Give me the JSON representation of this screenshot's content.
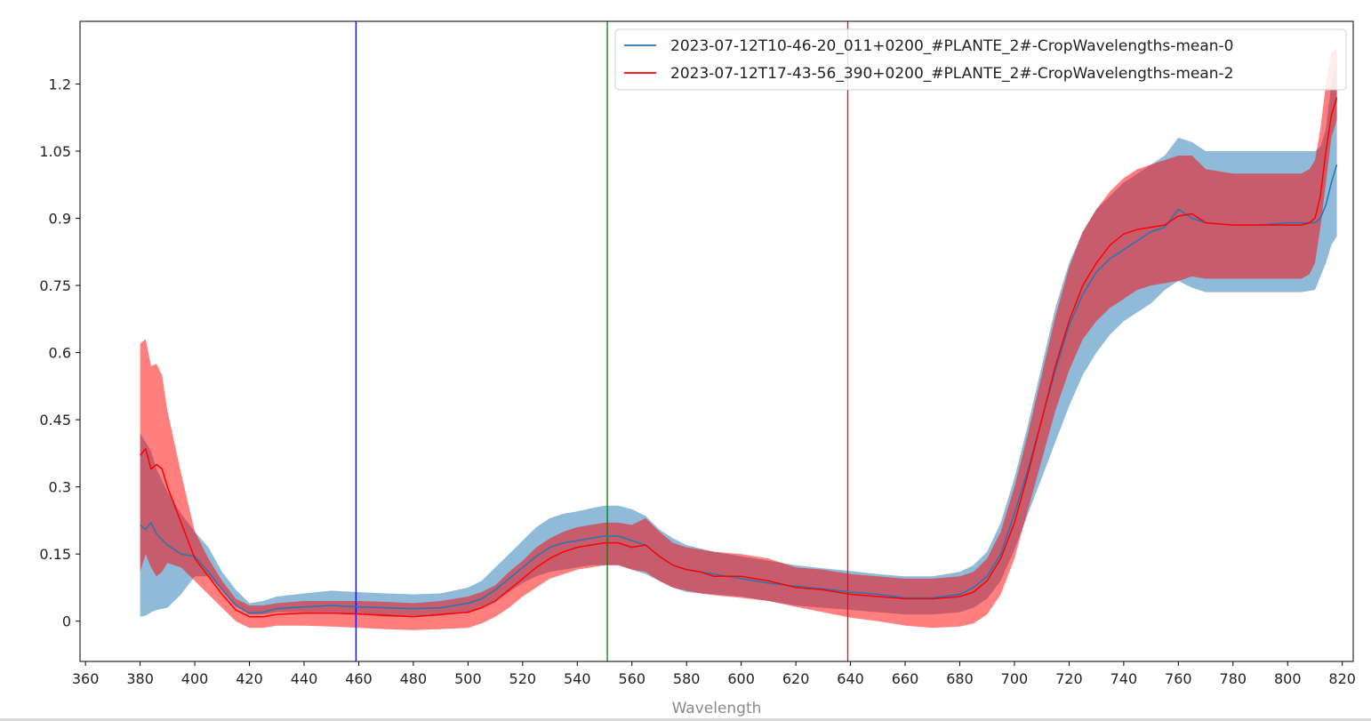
{
  "chart_data": {
    "type": "line",
    "title": "",
    "xlabel": "Wavelength",
    "ylabel": "",
    "xlim": [
      358,
      824
    ],
    "ylim": [
      -0.09,
      1.34
    ],
    "xticks": [
      360,
      380,
      400,
      420,
      440,
      460,
      480,
      500,
      520,
      540,
      560,
      580,
      600,
      620,
      640,
      660,
      680,
      700,
      720,
      740,
      760,
      780,
      800,
      820
    ],
    "yticks": [
      0,
      0.15,
      0.3,
      0.45,
      0.6,
      0.75,
      0.9,
      1.05,
      1.2
    ],
    "ytick_labels": [
      "0",
      "0.15",
      "0.3",
      "0.45",
      "0.6",
      "0.75",
      "0.9",
      "1.05",
      "1.2"
    ],
    "grid": false,
    "legend_position": "top-right",
    "vlines": [
      {
        "x": 459,
        "color": "#0000ff"
      },
      {
        "x": 551,
        "color": "#008000"
      },
      {
        "x": 639,
        "color": "#ff0000"
      }
    ],
    "series": [
      {
        "name": "2023-07-12T10-46-20_011+0200_#PLANTE_2#-CropWavelengths-mean-0",
        "color": "#1f77b4",
        "band_color": "#1f77b4",
        "band_opacity": 0.5,
        "x": [
          380,
          382,
          384,
          386,
          390,
          395,
          400,
          405,
          410,
          415,
          420,
          425,
          430,
          440,
          450,
          460,
          470,
          480,
          490,
          500,
          505,
          510,
          515,
          520,
          525,
          530,
          535,
          540,
          545,
          550,
          555,
          560,
          565,
          570,
          575,
          580,
          590,
          600,
          610,
          620,
          630,
          640,
          650,
          660,
          670,
          680,
          685,
          690,
          695,
          700,
          705,
          710,
          715,
          720,
          725,
          730,
          735,
          740,
          745,
          750,
          755,
          760,
          765,
          770,
          780,
          790,
          800,
          805,
          810,
          812,
          814,
          816,
          818
        ],
        "mean": [
          0.215,
          0.205,
          0.22,
          0.195,
          0.17,
          0.15,
          0.145,
          0.11,
          0.07,
          0.035,
          0.018,
          0.02,
          0.028,
          0.032,
          0.035,
          0.032,
          0.03,
          0.028,
          0.03,
          0.04,
          0.05,
          0.07,
          0.095,
          0.12,
          0.145,
          0.165,
          0.175,
          0.18,
          0.185,
          0.19,
          0.19,
          0.18,
          0.17,
          0.145,
          0.125,
          0.115,
          0.105,
          0.095,
          0.085,
          0.078,
          0.072,
          0.065,
          0.06,
          0.052,
          0.052,
          0.06,
          0.075,
          0.1,
          0.15,
          0.24,
          0.34,
          0.45,
          0.56,
          0.66,
          0.73,
          0.78,
          0.81,
          0.83,
          0.85,
          0.87,
          0.88,
          0.92,
          0.9,
          0.89,
          0.885,
          0.885,
          0.89,
          0.89,
          0.89,
          0.9,
          0.93,
          0.98,
          1.02
        ],
        "lower": [
          0.01,
          0.012,
          0.02,
          0.025,
          0.03,
          0.06,
          0.1,
          0.1,
          0.07,
          0.035,
          0.015,
          0.015,
          0.02,
          0.02,
          0.02,
          0.015,
          0.01,
          0.01,
          0.012,
          0.02,
          0.03,
          0.045,
          0.065,
          0.085,
          0.1,
          0.11,
          0.115,
          0.12,
          0.125,
          0.125,
          0.125,
          0.115,
          0.105,
          0.09,
          0.075,
          0.065,
          0.06,
          0.055,
          0.045,
          0.035,
          0.03,
          0.025,
          0.02,
          0.015,
          0.015,
          0.02,
          0.03,
          0.05,
          0.09,
          0.16,
          0.24,
          0.32,
          0.4,
          0.48,
          0.55,
          0.6,
          0.64,
          0.67,
          0.69,
          0.71,
          0.74,
          0.76,
          0.745,
          0.735,
          0.735,
          0.735,
          0.735,
          0.735,
          0.74,
          0.77,
          0.8,
          0.84,
          0.86
        ],
        "upper": [
          0.42,
          0.4,
          0.38,
          0.34,
          0.29,
          0.24,
          0.2,
          0.165,
          0.11,
          0.07,
          0.04,
          0.045,
          0.055,
          0.062,
          0.068,
          0.065,
          0.062,
          0.06,
          0.062,
          0.075,
          0.09,
          0.12,
          0.15,
          0.18,
          0.21,
          0.23,
          0.24,
          0.245,
          0.252,
          0.258,
          0.258,
          0.25,
          0.235,
          0.205,
          0.185,
          0.17,
          0.155,
          0.145,
          0.135,
          0.125,
          0.118,
          0.112,
          0.105,
          0.1,
          0.1,
          0.11,
          0.125,
          0.155,
          0.22,
          0.32,
          0.44,
          0.57,
          0.7,
          0.8,
          0.87,
          0.92,
          0.95,
          0.98,
          1.0,
          1.02,
          1.04,
          1.08,
          1.07,
          1.05,
          1.05,
          1.05,
          1.05,
          1.05,
          1.05,
          1.06,
          1.1,
          1.2,
          1.25
        ]
      },
      {
        "name": "2023-07-12T17-43-56_390+0200_#PLANTE_2#-CropWavelengths-mean-2",
        "color": "#ff0000",
        "band_color": "#ff0000",
        "band_opacity": 0.5,
        "x": [
          380,
          382,
          384,
          386,
          388,
          390,
          395,
          400,
          405,
          410,
          415,
          420,
          425,
          430,
          440,
          450,
          460,
          470,
          480,
          490,
          500,
          505,
          510,
          515,
          520,
          525,
          530,
          535,
          540,
          545,
          550,
          555,
          560,
          565,
          570,
          575,
          580,
          585,
          590,
          600,
          610,
          620,
          630,
          640,
          650,
          660,
          670,
          680,
          685,
          690,
          695,
          700,
          705,
          710,
          715,
          720,
          725,
          730,
          735,
          740,
          745,
          750,
          755,
          760,
          765,
          770,
          780,
          790,
          800,
          805,
          808,
          810,
          812,
          814,
          816,
          818
        ],
        "mean": [
          0.37,
          0.385,
          0.34,
          0.35,
          0.34,
          0.3,
          0.22,
          0.14,
          0.1,
          0.06,
          0.025,
          0.01,
          0.01,
          0.015,
          0.018,
          0.018,
          0.016,
          0.013,
          0.01,
          0.015,
          0.02,
          0.03,
          0.045,
          0.07,
          0.095,
          0.12,
          0.14,
          0.155,
          0.165,
          0.17,
          0.175,
          0.175,
          0.165,
          0.17,
          0.145,
          0.125,
          0.115,
          0.11,
          0.1,
          0.1,
          0.09,
          0.075,
          0.07,
          0.06,
          0.055,
          0.05,
          0.05,
          0.055,
          0.065,
          0.09,
          0.14,
          0.22,
          0.33,
          0.45,
          0.57,
          0.67,
          0.75,
          0.8,
          0.84,
          0.865,
          0.875,
          0.88,
          0.885,
          0.905,
          0.91,
          0.89,
          0.885,
          0.885,
          0.885,
          0.885,
          0.89,
          0.9,
          0.95,
          1.05,
          1.13,
          1.17
        ],
        "lower": [
          0.11,
          0.15,
          0.12,
          0.1,
          0.11,
          0.13,
          0.12,
          0.09,
          0.06,
          0.03,
          0.0,
          -0.015,
          -0.015,
          -0.01,
          -0.01,
          -0.012,
          -0.015,
          -0.018,
          -0.02,
          -0.018,
          -0.015,
          -0.005,
          0.01,
          0.03,
          0.055,
          0.075,
          0.095,
          0.105,
          0.115,
          0.12,
          0.125,
          0.125,
          0.115,
          0.11,
          0.09,
          0.075,
          0.068,
          0.062,
          0.058,
          0.052,
          0.045,
          0.032,
          0.02,
          0.008,
          0.0,
          -0.01,
          -0.015,
          -0.012,
          -0.005,
          0.015,
          0.06,
          0.14,
          0.25,
          0.36,
          0.47,
          0.56,
          0.63,
          0.67,
          0.7,
          0.72,
          0.74,
          0.75,
          0.755,
          0.76,
          0.77,
          0.765,
          0.765,
          0.765,
          0.765,
          0.765,
          0.775,
          0.8,
          0.88,
          0.98,
          1.08,
          1.12
        ],
        "upper": [
          0.62,
          0.63,
          0.57,
          0.575,
          0.55,
          0.47,
          0.33,
          0.2,
          0.14,
          0.09,
          0.05,
          0.035,
          0.035,
          0.04,
          0.045,
          0.045,
          0.045,
          0.043,
          0.04,
          0.045,
          0.055,
          0.065,
          0.08,
          0.11,
          0.135,
          0.165,
          0.185,
          0.2,
          0.21,
          0.215,
          0.22,
          0.22,
          0.215,
          0.23,
          0.2,
          0.175,
          0.165,
          0.16,
          0.155,
          0.15,
          0.14,
          0.12,
          0.115,
          0.105,
          0.1,
          0.095,
          0.095,
          0.1,
          0.11,
          0.14,
          0.2,
          0.3,
          0.42,
          0.55,
          0.68,
          0.79,
          0.87,
          0.92,
          0.96,
          0.99,
          1.01,
          1.02,
          1.03,
          1.04,
          1.04,
          1.01,
          1.0,
          1.0,
          1.0,
          1.0,
          1.01,
          1.03,
          1.1,
          1.2,
          1.27,
          1.28
        ]
      }
    ]
  }
}
